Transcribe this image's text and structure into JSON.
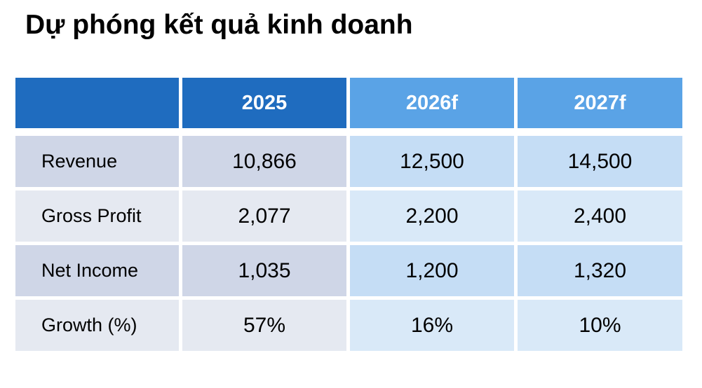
{
  "title": "Dự phóng kết quả kinh doanh",
  "table": {
    "header": [
      "",
      "2025",
      "2026f",
      "2027f"
    ],
    "rows": [
      {
        "label": "Revenue",
        "values": [
          "10,866",
          "12,500",
          "14,500"
        ]
      },
      {
        "label": "Gross Profit",
        "values": [
          "2,077",
          "2,200",
          "2,400"
        ]
      },
      {
        "label": "Net Income",
        "values": [
          "1,035",
          "1,200",
          "1,320"
        ]
      },
      {
        "label": "Growth (%)",
        "values": [
          "57%",
          "16%",
          "10%"
        ]
      }
    ]
  },
  "colors": {
    "header_actual": "#1f6cbf",
    "header_forecast": "#5aa3e6",
    "actual_band_a": "#cfd6e7",
    "actual_band_b": "#e5e9f1",
    "forecast_band_a": "#c5ddf5",
    "forecast_band_b": "#d9e9f8"
  }
}
